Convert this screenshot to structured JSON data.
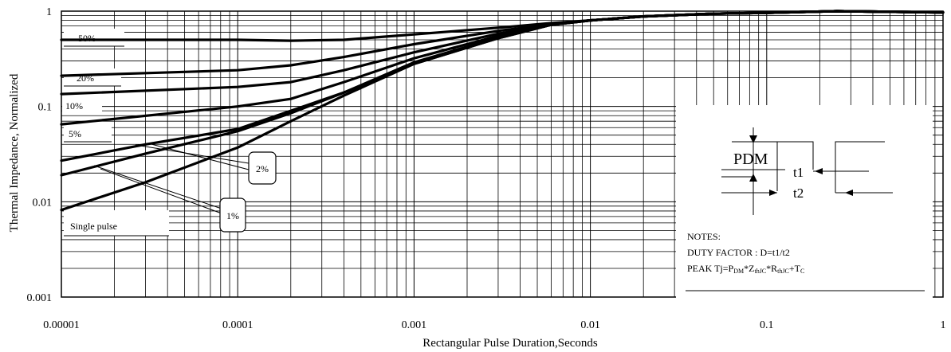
{
  "chart_data": {
    "type": "line",
    "xscale": "log",
    "yscale": "log",
    "xlim": [
      1e-05,
      1
    ],
    "ylim": [
      0.001,
      1
    ],
    "xlabel": "Rectangular Pulse Duration,Seconds",
    "ylabel": "Thermal Impedance, Normalized",
    "x_ticks": [
      "0.00001",
      "0.0001",
      "0.001",
      "0.01",
      "0.1",
      "1"
    ],
    "y_ticks": [
      "0.001",
      "0.01",
      "0.1",
      "1"
    ],
    "grid": true,
    "series": [
      {
        "name": "50%",
        "points": [
          [
            1e-05,
            0.5
          ],
          [
            0.0001,
            0.5
          ],
          [
            0.0002,
            0.49
          ],
          [
            0.0004,
            0.5
          ],
          [
            0.001,
            0.57
          ],
          [
            0.003,
            0.67
          ],
          [
            0.006,
            0.75
          ],
          [
            0.01,
            0.8
          ],
          [
            0.02,
            0.88
          ],
          [
            0.05,
            0.94
          ],
          [
            0.1,
            0.96
          ],
          [
            0.25,
            1.0
          ],
          [
            1,
            0.97
          ]
        ]
      },
      {
        "name": "20%",
        "points": [
          [
            1e-05,
            0.21
          ],
          [
            0.0001,
            0.24
          ],
          [
            0.0002,
            0.27
          ],
          [
            0.0004,
            0.33
          ],
          [
            0.001,
            0.45
          ],
          [
            0.003,
            0.62
          ],
          [
            0.006,
            0.73
          ],
          [
            0.01,
            0.8
          ],
          [
            0.02,
            0.88
          ],
          [
            0.05,
            0.94
          ],
          [
            0.1,
            0.96
          ],
          [
            0.25,
            1.0
          ],
          [
            1,
            0.97
          ]
        ]
      },
      {
        "name": "10%",
        "points": [
          [
            1e-05,
            0.135
          ],
          [
            0.0001,
            0.16
          ],
          [
            0.0002,
            0.18
          ],
          [
            0.0004,
            0.24
          ],
          [
            0.001,
            0.37
          ],
          [
            0.003,
            0.58
          ],
          [
            0.006,
            0.73
          ],
          [
            0.01,
            0.8
          ],
          [
            0.02,
            0.88
          ],
          [
            0.05,
            0.94
          ],
          [
            0.1,
            0.96
          ],
          [
            0.25,
            1.0
          ],
          [
            1,
            0.97
          ]
        ]
      },
      {
        "name": "5%",
        "points": [
          [
            1e-05,
            0.065
          ],
          [
            0.0001,
            0.1
          ],
          [
            0.0002,
            0.12
          ],
          [
            0.0004,
            0.18
          ],
          [
            0.001,
            0.32
          ],
          [
            0.003,
            0.55
          ],
          [
            0.006,
            0.72
          ],
          [
            0.01,
            0.8
          ],
          [
            0.02,
            0.88
          ],
          [
            0.05,
            0.94
          ],
          [
            0.1,
            0.96
          ],
          [
            0.25,
            1.0
          ],
          [
            1,
            0.97
          ]
        ]
      },
      {
        "name": "2%",
        "points": [
          [
            1e-05,
            0.027
          ],
          [
            3e-05,
            0.04
          ],
          [
            0.0001,
            0.058
          ],
          [
            0.0002,
            0.09
          ],
          [
            0.0004,
            0.14
          ],
          [
            0.001,
            0.29
          ],
          [
            0.003,
            0.53
          ],
          [
            0.006,
            0.72
          ],
          [
            0.01,
            0.8
          ],
          [
            0.02,
            0.88
          ],
          [
            0.05,
            0.94
          ],
          [
            0.1,
            0.96
          ],
          [
            0.25,
            1.0
          ],
          [
            1,
            0.97
          ]
        ]
      },
      {
        "name": "1%",
        "points": [
          [
            1e-05,
            0.019
          ],
          [
            3e-05,
            0.032
          ],
          [
            0.0001,
            0.055
          ],
          [
            0.0002,
            0.085
          ],
          [
            0.0004,
            0.14
          ],
          [
            0.001,
            0.28
          ],
          [
            0.003,
            0.52
          ],
          [
            0.006,
            0.72
          ],
          [
            0.01,
            0.8
          ],
          [
            0.02,
            0.88
          ],
          [
            0.05,
            0.94
          ],
          [
            0.1,
            0.96
          ],
          [
            0.25,
            1.0
          ],
          [
            1,
            0.97
          ]
        ]
      },
      {
        "name": "Single pulse",
        "points": [
          [
            1e-05,
            0.0082
          ],
          [
            3e-05,
            0.016
          ],
          [
            0.0001,
            0.037
          ],
          [
            0.0002,
            0.07
          ],
          [
            0.0004,
            0.13
          ],
          [
            0.001,
            0.28
          ],
          [
            0.003,
            0.52
          ],
          [
            0.006,
            0.72
          ],
          [
            0.01,
            0.8
          ],
          [
            0.02,
            0.88
          ],
          [
            0.05,
            0.94
          ],
          [
            0.1,
            0.96
          ],
          [
            0.25,
            1.0
          ],
          [
            1,
            0.97
          ]
        ]
      }
    ],
    "inset": {
      "pdm": "PDM",
      "t1": "t1",
      "t2": "t2",
      "notes_title": "NOTES:",
      "duty_factor": "DUTY FACTOR : D=t1/t2",
      "peak_prefix": "PEAK Tj=P",
      "peak_dm": "DM",
      "peak_z": "*Z",
      "peak_thjc1": "thJC",
      "peak_r": "*R",
      "peak_thjc2": "thJC",
      "peak_tc": "+T",
      "peak_c": "C"
    }
  }
}
